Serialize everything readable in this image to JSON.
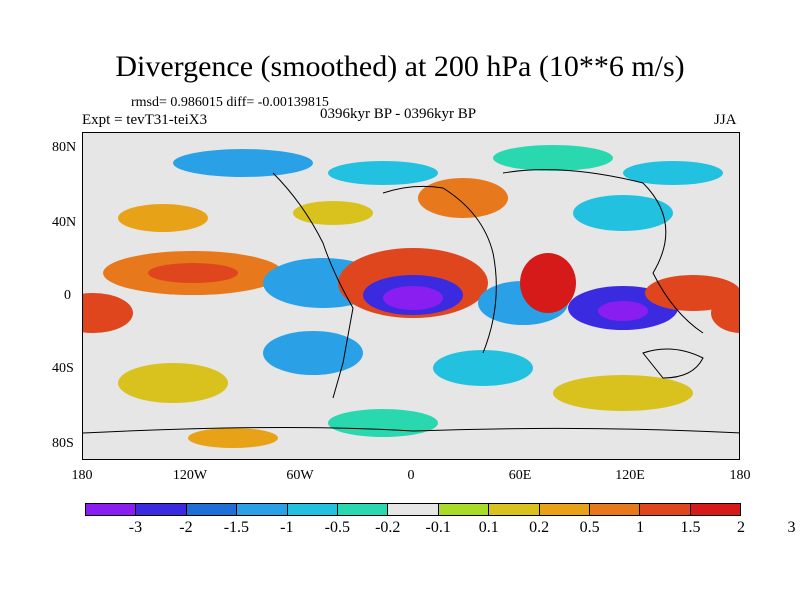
{
  "header": {
    "title": "Divergence (smoothed) at 200 hPa (10**6 m/s)",
    "stats": "rmsd= 0.986015 diff= -0.00139815",
    "expt": "Expt = tevT31-teiX3",
    "period": "0396kyr BP - 0396kyr BP",
    "season": "JJA"
  },
  "axes": {
    "y_ticks": [
      "80N",
      "40N",
      "0",
      "40S",
      "80S"
    ],
    "x_ticks": [
      "180",
      "120W",
      "60W",
      "0",
      "60E",
      "120E",
      "180"
    ]
  },
  "legend": {
    "colors": [
      "#8a1df0",
      "#3b2be0",
      "#1f6fd8",
      "#2aa1e6",
      "#22c1e0",
      "#2ad8b0",
      "#e6e6e6",
      "#a8dc28",
      "#d9c21e",
      "#e8a218",
      "#e8781c",
      "#e0461e",
      "#d61a1a"
    ],
    "labels": [
      "-3",
      "-2",
      "-1.5",
      "-1",
      "-0.5",
      "-0.2",
      "-0.1",
      "0.1",
      "0.2",
      "0.5",
      "1",
      "1.5",
      "2",
      "3"
    ]
  }
}
